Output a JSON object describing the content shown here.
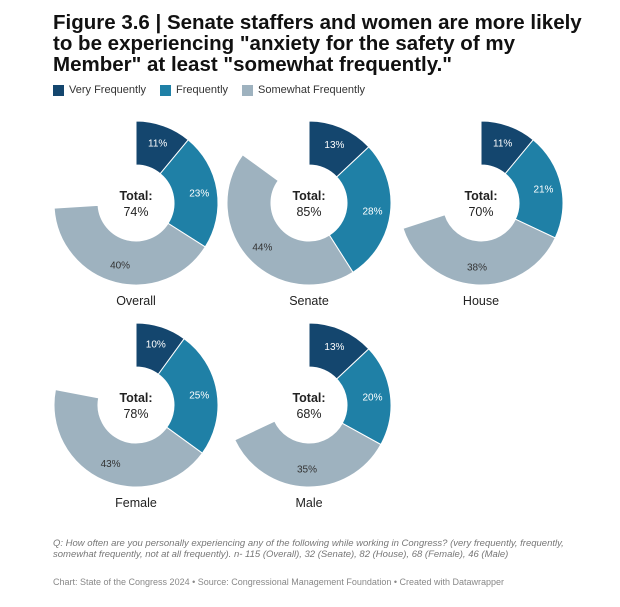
{
  "title": "Figure 3.6 | Senate staffers and women are more likely to be experiencing \"anxiety for the safety of my Member\" at least \"somewhat frequently.\"",
  "total_label": "Total:",
  "colors": {
    "Very Frequently": "#14466e",
    "Frequently": "#1f80a6",
    "Somewhat Frequently": "#9eb2bf",
    "Remainder": "#ffffff"
  },
  "chart_data": [
    {
      "type": "pie",
      "name": "Overall",
      "total": "74%",
      "categories": [
        "Very Frequently",
        "Frequently",
        "Somewhat Frequently"
      ],
      "values": [
        11,
        23,
        40
      ],
      "labels": [
        "11%",
        "23%",
        "40%"
      ]
    },
    {
      "type": "pie",
      "name": "Senate",
      "total": "85%",
      "categories": [
        "Very Frequently",
        "Frequently",
        "Somewhat Frequently"
      ],
      "values": [
        13,
        28,
        44
      ],
      "labels": [
        "13%",
        "28%",
        "44%"
      ]
    },
    {
      "type": "pie",
      "name": "House",
      "total": "70%",
      "categories": [
        "Very Frequently",
        "Frequently",
        "Somewhat Frequently"
      ],
      "values": [
        11,
        21,
        38
      ],
      "labels": [
        "11%",
        "21%",
        "38%"
      ]
    },
    {
      "type": "pie",
      "name": "Female",
      "total": "78%",
      "categories": [
        "Very Frequently",
        "Frequently",
        "Somewhat Frequently"
      ],
      "values": [
        10,
        25,
        43
      ],
      "labels": [
        "10%",
        "25%",
        "43%"
      ]
    },
    {
      "type": "pie",
      "name": "Male",
      "total": "68%",
      "categories": [
        "Very Frequently",
        "Frequently",
        "Somewhat Frequently"
      ],
      "values": [
        13,
        20,
        35
      ],
      "labels": [
        "13%",
        "20%",
        "35%"
      ]
    }
  ],
  "legend": [
    {
      "label": "Very Frequently",
      "color": "#14466e"
    },
    {
      "label": "Frequently",
      "color": "#1f80a6"
    },
    {
      "label": "Somewhat Frequently",
      "color": "#9eb2bf"
    }
  ],
  "note": "Q: How often are you personally experiencing any of the following while working in Congress? (very frequently, frequently, somewhat frequently, not at all frequently). n- 115 (Overall), 32 (Senate), 82 (House), 68 (Female), 46 (Male)",
  "credit": "Chart: State of the Congress 2024 • Source: Congressional Management Foundation • Created with Datawrapper"
}
